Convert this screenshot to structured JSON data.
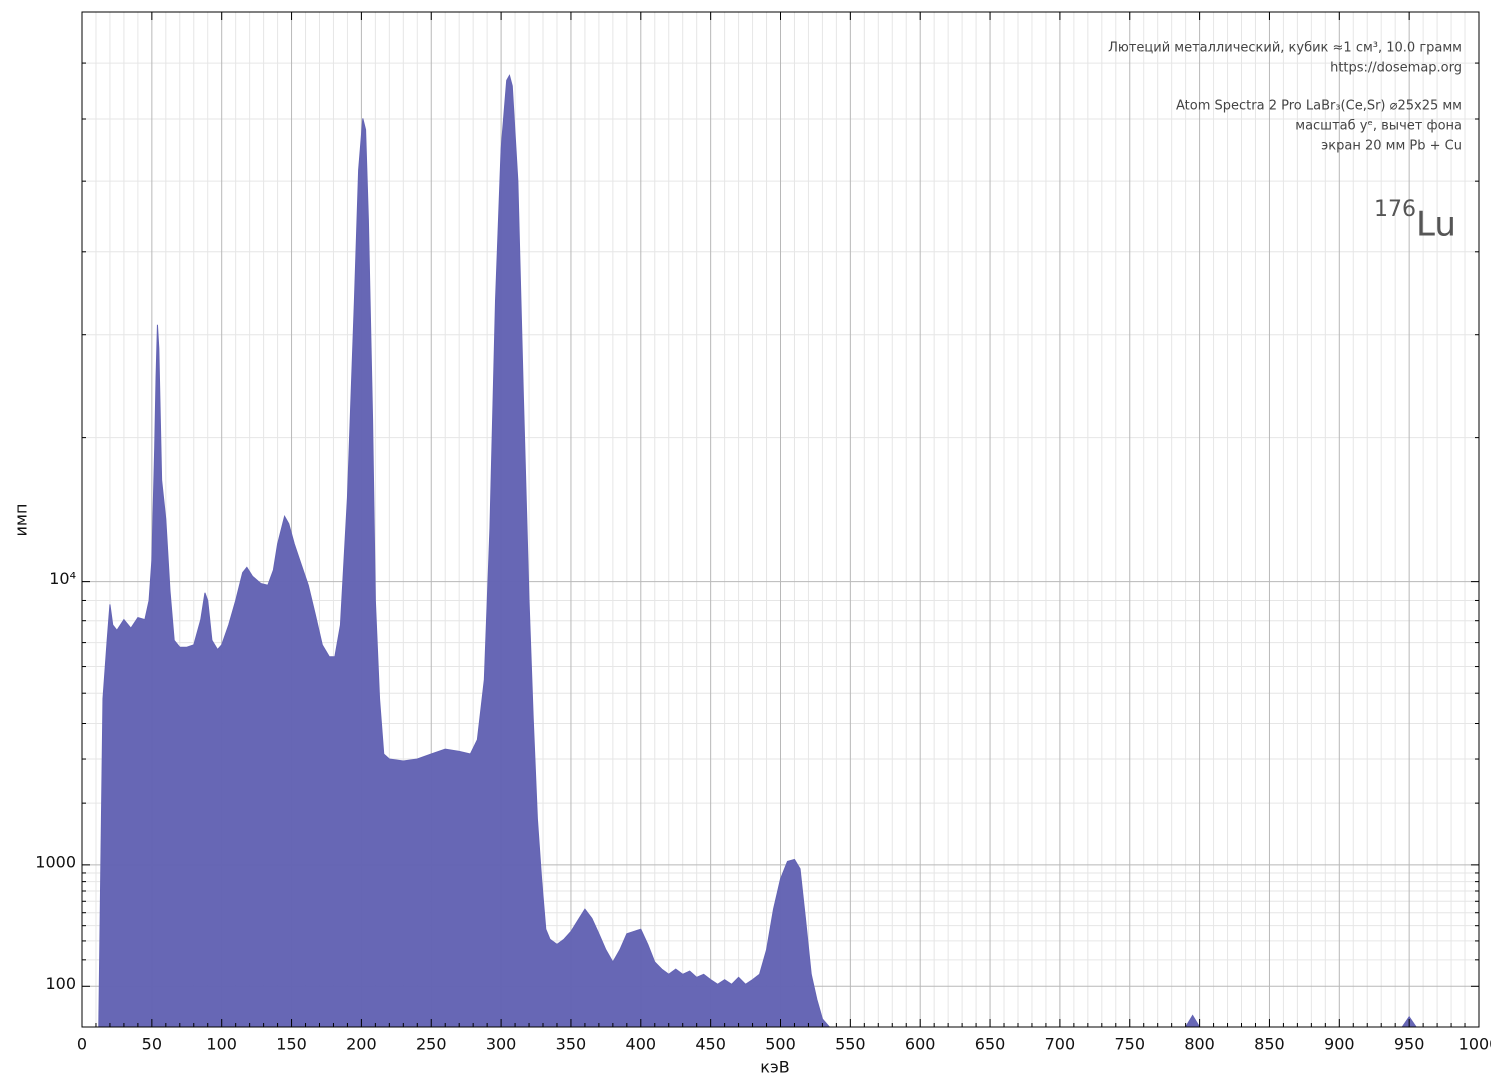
{
  "chart_data": {
    "type": "area",
    "xlabel": "кэВ",
    "ylabel": "имп",
    "annotations": [
      "Лютеций металлический, кубик ≈1 см³, 10.0 грамм",
      "https://dosemap.org",
      "Atom Spectra 2 Pro LaBr₃(Ce,Sr) ⌀25x25 мм",
      "масштаб yᵉ, вычет фона",
      "экран 20 мм Pb + Cu"
    ],
    "isotope": {
      "mass": "176",
      "symbol": "Lu"
    },
    "yscale": "root-e",
    "color": "#6464b4",
    "grid": true,
    "xlim": [
      0,
      1000
    ],
    "ylim": [
      20,
      80000
    ],
    "xticks": [
      0,
      50,
      100,
      150,
      200,
      250,
      300,
      350,
      400,
      450,
      500,
      550,
      600,
      650,
      700,
      750,
      800,
      850,
      900,
      950,
      1000
    ],
    "xminorticks": [
      10,
      20,
      30,
      40,
      60,
      70,
      80,
      90,
      110,
      120,
      130,
      140,
      160,
      170,
      180,
      190,
      210,
      220,
      230,
      240,
      260,
      270,
      280,
      290,
      310,
      320,
      330,
      340,
      360,
      370,
      380,
      390,
      410,
      420,
      430,
      440,
      460,
      470,
      480,
      490,
      510,
      520,
      530,
      540,
      560,
      570,
      580,
      590,
      610,
      620,
      630,
      640,
      660,
      670,
      680,
      690,
      710,
      720,
      730,
      740,
      760,
      770,
      780,
      790,
      810,
      820,
      830,
      840,
      860,
      870,
      880,
      890,
      910,
      920,
      930,
      940,
      960,
      970,
      980,
      990
    ],
    "yticks": [
      100,
      1000,
      {
        "value": 10000,
        "label": "10⁴"
      }
    ],
    "yminorticks": [
      200,
      300,
      400,
      500,
      600,
      700,
      800,
      900,
      2000,
      3000,
      4000,
      5000,
      6000,
      7000,
      8000,
      9000,
      20000,
      30000,
      40000,
      50000,
      60000,
      70000
    ],
    "x": [
      12,
      15,
      18,
      20,
      22,
      25,
      30,
      35,
      40,
      45,
      48,
      50,
      52,
      53,
      54,
      55,
      57,
      60,
      63,
      66,
      70,
      75,
      80,
      85,
      88,
      90,
      93,
      97,
      100,
      105,
      110,
      115,
      118,
      122,
      128,
      133,
      137,
      140,
      145,
      148,
      152,
      157,
      162,
      167,
      172,
      177,
      181,
      185,
      190,
      195,
      198,
      201,
      203,
      205,
      208,
      210,
      213,
      216,
      220,
      230,
      240,
      250,
      260,
      270,
      278,
      283,
      288,
      292,
      296,
      300,
      304,
      306,
      308,
      312,
      316,
      320,
      323,
      326,
      329,
      332,
      335,
      340,
      345,
      350,
      355,
      360,
      365,
      370,
      375,
      380,
      385,
      390,
      395,
      400,
      405,
      410,
      415,
      420,
      425,
      430,
      435,
      440,
      445,
      450,
      455,
      460,
      465,
      470,
      475,
      480,
      485,
      490,
      495,
      500,
      505,
      510,
      514,
      518,
      522,
      526,
      530,
      535,
      540,
      790,
      795,
      800,
      945,
      950,
      955,
      1000
    ],
    "values": [
      20,
      4800,
      7100,
      8800,
      7800,
      7550,
      8050,
      7650,
      8150,
      8050,
      9000,
      11200,
      19000,
      25500,
      31100,
      28500,
      16600,
      13800,
      9500,
      7100,
      6800,
      6800,
      6900,
      8050,
      9400,
      9000,
      7100,
      6700,
      6900,
      7800,
      9000,
      10500,
      10800,
      10300,
      9900,
      9800,
      10650,
      12200,
      14000,
      13500,
      12200,
      10950,
      9800,
      8300,
      6900,
      6400,
      6400,
      7800,
      15300,
      33900,
      51700,
      60100,
      58200,
      44400,
      21600,
      9000,
      4800,
      3130,
      3000,
      2950,
      3000,
      3130,
      3260,
      3200,
      3130,
      3520,
      5500,
      13200,
      33900,
      55000,
      66800,
      67700,
      65800,
      50000,
      23500,
      9000,
      4150,
      1700,
      830,
      375,
      310,
      280,
      310,
      360,
      440,
      530,
      455,
      345,
      250,
      190,
      250,
      345,
      360,
      375,
      280,
      190,
      160,
      140,
      160,
      140,
      152,
      129,
      140,
      121,
      106,
      121,
      106,
      129,
      106,
      121,
      140,
      250,
      530,
      830,
      1045,
      1070,
      950,
      440,
      140,
      66,
      30,
      20,
      20,
      20,
      35,
      20,
      20,
      33,
      20,
      20
    ]
  }
}
